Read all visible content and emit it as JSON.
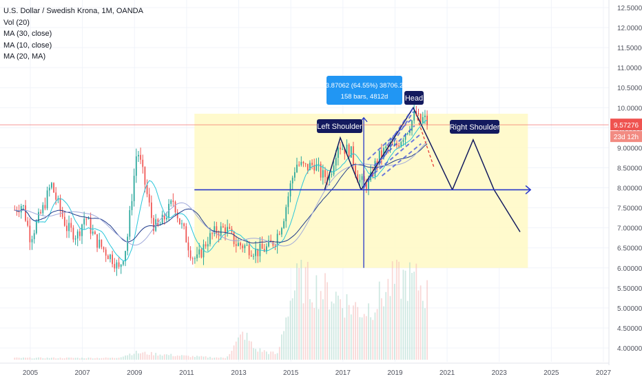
{
  "header": {
    "title": "U.S. Dollar / Swedish Krona, 1M, OANDA",
    "indicators": [
      "Vol (20)",
      "MA (30, close)",
      "MA (10, close)",
      "MA (20, MA)"
    ]
  },
  "colors": {
    "up": "#26a69a",
    "down": "#ef5350",
    "ma_blue": "#1e3a8a",
    "ma_teal": "#26c6da",
    "pattern_line": "#131a5e",
    "highlight_box": "#fff9c4",
    "price_line": "#ef5350",
    "axis_text": "#50535e"
  },
  "axis": {
    "y_ticks": [
      "12.50000",
      "12.00000",
      "11.50000",
      "11.00000",
      "10.50000",
      "10.00000",
      "9.50000",
      "9.00000",
      "8.50000",
      "8.00000",
      "7.50000",
      "7.00000",
      "6.50000",
      "6.00000",
      "5.50000",
      "5.00000",
      "4.50000",
      "4.00000"
    ],
    "x_ticks": [
      "2005",
      "2007",
      "2009",
      "2011",
      "2013",
      "2015",
      "2017",
      "2019",
      "2021",
      "2023",
      "2025",
      "2027"
    ],
    "price_label": "9.57276",
    "countdown_label": "23d 12h"
  },
  "annotations": {
    "measure_line1": "3.87062 (64.55%) 38706.2",
    "measure_line2": "158 bars, 4812d",
    "head": "Head",
    "left_shoulder": "Left Shoulder",
    "right_shoulder": "Right Shoulder"
  },
  "chart_data": {
    "type": "candlestick",
    "title": "U.S. Dollar / Swedish Krona, 1M, OANDA",
    "x_range": [
      2004.0,
      2028.0
    ],
    "y_range": [
      3.8,
      12.6
    ],
    "current_price": 9.57276,
    "anchors": [
      [
        2004.4,
        7.45
      ],
      [
        2004.7,
        7.6
      ],
      [
        2005.0,
        6.75
      ],
      [
        2005.5,
        7.5
      ],
      [
        2005.8,
        8.1
      ],
      [
        2006.0,
        7.7
      ],
      [
        2006.4,
        7.0
      ],
      [
        2006.8,
        6.8
      ],
      [
        2007.1,
        7.3
      ],
      [
        2007.5,
        6.7
      ],
      [
        2007.9,
        6.4
      ],
      [
        2008.2,
        6.2
      ],
      [
        2008.4,
        5.95
      ],
      [
        2008.7,
        6.6
      ],
      [
        2008.9,
        7.8
      ],
      [
        2009.1,
        9.0
      ],
      [
        2009.4,
        8.1
      ],
      [
        2009.7,
        7.1
      ],
      [
        2009.9,
        7.0
      ],
      [
        2010.2,
        7.3
      ],
      [
        2010.5,
        7.7
      ],
      [
        2010.7,
        7.2
      ],
      [
        2010.9,
        6.9
      ],
      [
        2011.2,
        6.3
      ],
      [
        2011.4,
        6.2
      ],
      [
        2011.8,
        6.7
      ],
      [
        2012.1,
        6.9
      ],
      [
        2012.5,
        7.0
      ],
      [
        2012.9,
        6.6
      ],
      [
        2013.2,
        6.55
      ],
      [
        2013.7,
        6.4
      ],
      [
        2014.1,
        6.5
      ],
      [
        2014.4,
        6.7
      ],
      [
        2014.7,
        7.2
      ],
      [
        2015.0,
        8.1
      ],
      [
        2015.2,
        8.6
      ],
      [
        2015.6,
        8.5
      ],
      [
        2015.9,
        8.6
      ],
      [
        2016.2,
        8.3
      ],
      [
        2016.5,
        8.3
      ],
      [
        2016.8,
        9.1
      ],
      [
        2017.0,
        9.0
      ],
      [
        2017.3,
        8.9
      ],
      [
        2017.6,
        8.2
      ],
      [
        2017.8,
        8.1
      ],
      [
        2018.0,
        8.1
      ],
      [
        2018.3,
        8.7
      ],
      [
        2018.7,
        9.0
      ],
      [
        2019.0,
        9.0
      ],
      [
        2019.3,
        9.3
      ],
      [
        2019.6,
        9.6
      ],
      [
        2019.8,
        9.9
      ],
      [
        2019.95,
        9.6
      ],
      [
        2020.1,
        9.75
      ],
      [
        2020.25,
        9.6
      ]
    ],
    "volume_profile": [
      [
        2004.0,
        0.02
      ],
      [
        2008.3,
        0.02
      ],
      [
        2009.0,
        0.08
      ],
      [
        2011.0,
        0.04
      ],
      [
        2012.5,
        0.02
      ],
      [
        2013.2,
        0.3
      ],
      [
        2013.6,
        0.12
      ],
      [
        2014.5,
        0.06
      ],
      [
        2014.9,
        0.6
      ],
      [
        2015.3,
        0.9
      ],
      [
        2016.0,
        0.8
      ],
      [
        2016.8,
        0.7
      ],
      [
        2017.3,
        0.6
      ],
      [
        2017.8,
        0.55
      ],
      [
        2018.3,
        0.65
      ],
      [
        2018.9,
        0.85
      ],
      [
        2019.4,
        0.9
      ],
      [
        2019.9,
        0.85
      ],
      [
        2020.3,
        0.7
      ]
    ],
    "pattern": {
      "left_shoulder_path": [
        [
          2016.3,
          7.95
        ],
        [
          2016.9,
          9.25
        ],
        [
          2017.7,
          7.95
        ]
      ],
      "head_path": [
        [
          2017.7,
          7.95
        ],
        [
          2019.7,
          10.0
        ],
        [
          2021.2,
          7.95
        ]
      ],
      "right_shoulder_path": [
        [
          2021.2,
          7.95
        ],
        [
          2022.0,
          9.2
        ],
        [
          2022.8,
          7.95
        ]
      ],
      "breakdown_path": [
        [
          2022.8,
          7.95
        ],
        [
          2023.8,
          6.9
        ]
      ],
      "neckline": [
        [
          2011.3,
          7.95
        ],
        [
          2024.2,
          7.95
        ]
      ],
      "measure_vertical": {
        "x": 2017.8,
        "from": 6.0,
        "to": 9.75
      },
      "highlight_box": {
        "x_from": 2011.3,
        "x_to": 2024.1,
        "y_from": 6.0,
        "y_to": 9.85
      },
      "projection_dashed": [
        [
          2019.8,
          9.85
        ],
        [
          2020.5,
          8.5
        ]
      ]
    }
  }
}
